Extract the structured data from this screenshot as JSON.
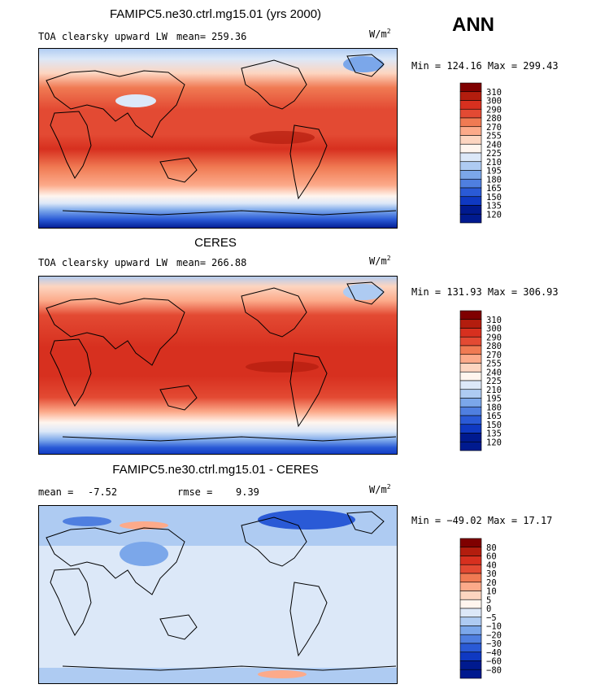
{
  "season_label": "ANN",
  "panels": [
    {
      "title": "FAMIPC5.ne30.ctrl.mg15.01 (yrs 2000)",
      "left_label": "TOA clearsky upward LW",
      "stat_label": "mean=",
      "stat_value": "259.36",
      "rmse_label": "",
      "rmse_value": "",
      "units_base": "W/m",
      "units_sup": "2",
      "minmax": "Min = 124.16 Max = 299.43",
      "levels": [
        "310",
        "300",
        "290",
        "280",
        "270",
        "255",
        "240",
        "225",
        "210",
        "195",
        "180",
        "165",
        "150",
        "135",
        "120"
      ]
    },
    {
      "title": "CERES",
      "left_label": "TOA clearsky upward LW",
      "stat_label": "mean=",
      "stat_value": "266.88",
      "rmse_label": "",
      "rmse_value": "",
      "units_base": "W/m",
      "units_sup": "2",
      "minmax": "Min = 131.93 Max = 306.93",
      "levels": [
        "310",
        "300",
        "290",
        "280",
        "270",
        "255",
        "240",
        "225",
        "210",
        "195",
        "180",
        "165",
        "150",
        "135",
        "120"
      ]
    },
    {
      "title": "FAMIPC5.ne30.ctrl.mg15.01 - CERES",
      "left_label": "",
      "stat_label": "mean =",
      "stat_value": "-7.52",
      "rmse_label": "rmse =",
      "rmse_value": "9.39",
      "units_base": "W/m",
      "units_sup": "2",
      "minmax": "Min = −49.02 Max =  17.17",
      "levels": [
        "80",
        "60",
        "40",
        "30",
        "20",
        "10",
        "5",
        "0",
        "−5",
        "−10",
        "−20",
        "−30",
        "−40",
        "−60",
        "−80"
      ]
    }
  ],
  "colors": {
    "abs_scale": [
      "#7f0000",
      "#b31d0e",
      "#d7301f",
      "#e34a33",
      "#f07a53",
      "#fcaa8a",
      "#fdd5c0",
      "#fff5ee",
      "#dce8f8",
      "#aecbf2",
      "#7ba7ea",
      "#4f7fe0",
      "#2a5ad6",
      "#0f39c2",
      "#001a8f"
    ],
    "diff_scale": [
      "#7f0000",
      "#b31d0e",
      "#d7301f",
      "#e34a33",
      "#f07a53",
      "#fcaa8a",
      "#fdd5c0",
      "#fff5ee",
      "#dce8f8",
      "#aecbf2",
      "#7ba7ea",
      "#4f7fe0",
      "#2a5ad6",
      "#0f39c2",
      "#001a8f"
    ]
  },
  "chart_data": [
    {
      "type": "heatmap",
      "title": "FAMIPC5.ne30.ctrl.mg15.01 (yrs 2000)",
      "variable": "TOA clearsky upward LW",
      "units": "W/m2",
      "mean": 259.36,
      "min": 124.16,
      "max": 299.43,
      "contour_levels": [
        120,
        135,
        150,
        165,
        180,
        195,
        210,
        225,
        240,
        255,
        270,
        280,
        290,
        300,
        310
      ]
    },
    {
      "type": "heatmap",
      "title": "CERES",
      "variable": "TOA clearsky upward LW",
      "units": "W/m2",
      "mean": 266.88,
      "min": 131.93,
      "max": 306.93,
      "contour_levels": [
        120,
        135,
        150,
        165,
        180,
        195,
        210,
        225,
        240,
        255,
        270,
        280,
        290,
        300,
        310
      ]
    },
    {
      "type": "heatmap",
      "title": "FAMIPC5.ne30.ctrl.mg15.01 - CERES",
      "units": "W/m2",
      "mean": -7.52,
      "rmse": 9.39,
      "min": -49.02,
      "max": 17.17,
      "contour_levels": [
        -80,
        -60,
        -40,
        -30,
        -20,
        -10,
        -5,
        0,
        5,
        10,
        20,
        30,
        40,
        60,
        80
      ]
    }
  ]
}
